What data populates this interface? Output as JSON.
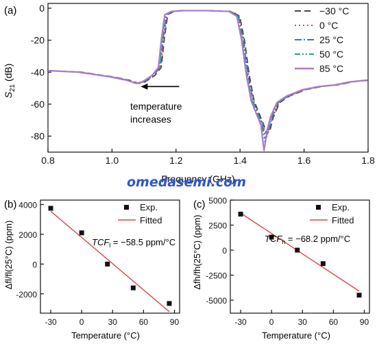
{
  "chart_data": [
    {
      "panel": "(a)",
      "type": "line",
      "xlabel": "Frequency (GHz)",
      "ylabel_main": "S",
      "ylabel_sub": "21",
      "ylabel_unit": " (dB)",
      "xlim": [
        0.8,
        1.8
      ],
      "ylim": [
        -90,
        3
      ],
      "xticks": [
        0.8,
        1.0,
        1.2,
        1.4,
        1.6,
        1.8
      ],
      "xtick_labels": [
        "0.8",
        "1.0",
        "1.2",
        "1.4",
        "1.6",
        "1.8"
      ],
      "yticks": [
        0,
        -20,
        -40,
        -60,
        -80
      ],
      "ytick_labels": [
        "0",
        "-20",
        "-40",
        "-60",
        "-80"
      ],
      "legend_position": "top-right",
      "annotation_line1": "temperature",
      "annotation_line2": "increases",
      "annotation_arrow": {
        "from": [
          1.21,
          -49
        ],
        "to": [
          1.09,
          -49
        ]
      },
      "series": [
        {
          "name": "−30 °C",
          "color": "#444444",
          "dash": "9,5",
          "shift": 0.004,
          "x": [
            0.8,
            0.9,
            1.0,
            1.05,
            1.08,
            1.1,
            1.13,
            1.15,
            1.16,
            1.17,
            1.19,
            1.22,
            1.3,
            1.37,
            1.395,
            1.41,
            1.425,
            1.44,
            1.46,
            1.47,
            1.48,
            1.49,
            1.5,
            1.52,
            1.55,
            1.6,
            1.65,
            1.7,
            1.75,
            1.8
          ],
          "y": [
            -39,
            -40,
            -43,
            -45,
            -47,
            -46,
            -42,
            -37,
            -18,
            -4,
            -2,
            -1.5,
            -1.5,
            -2,
            -5,
            -20,
            -42,
            -58,
            -68,
            -73,
            -79,
            -76,
            -68,
            -59,
            -55,
            -51,
            -49,
            -48,
            -46,
            -45
          ]
        },
        {
          "name": "0 °C",
          "color": "#e0403a",
          "dash": "2,4",
          "shift": 0.002,
          "x": [
            0.8,
            0.9,
            1.0,
            1.05,
            1.08,
            1.1,
            1.13,
            1.15,
            1.16,
            1.17,
            1.19,
            1.22,
            1.3,
            1.37,
            1.395,
            1.41,
            1.425,
            1.44,
            1.46,
            1.47,
            1.48,
            1.49,
            1.5,
            1.52,
            1.55,
            1.6,
            1.65,
            1.7,
            1.75,
            1.8
          ],
          "y": [
            -39,
            -40,
            -43,
            -45,
            -47,
            -46,
            -42,
            -37,
            -18,
            -4,
            -2,
            -1.5,
            -1.5,
            -2,
            -5,
            -20,
            -42,
            -58,
            -68,
            -73,
            -80,
            -76,
            -68,
            -59,
            -55,
            -51,
            -49,
            -48,
            -46,
            -45
          ]
        },
        {
          "name": "25 °C",
          "color": "#3a72c0",
          "dash": "10,3,2,3",
          "shift": 0.0,
          "x": [
            0.8,
            0.9,
            1.0,
            1.05,
            1.08,
            1.1,
            1.13,
            1.15,
            1.16,
            1.17,
            1.19,
            1.22,
            1.3,
            1.37,
            1.395,
            1.41,
            1.425,
            1.44,
            1.46,
            1.47,
            1.48,
            1.49,
            1.5,
            1.52,
            1.55,
            1.6,
            1.65,
            1.7,
            1.75,
            1.8
          ],
          "y": [
            -39,
            -40,
            -43,
            -45,
            -47,
            -46,
            -42,
            -37,
            -18,
            -4,
            -2,
            -1.5,
            -1.5,
            -2,
            -5,
            -20,
            -42,
            -58,
            -68,
            -73,
            -82,
            -76,
            -68,
            -59,
            -55,
            -51,
            -49,
            -48,
            -46,
            -45
          ]
        },
        {
          "name": "50 °C",
          "color": "#2a9a8a",
          "dash": "8,3,2,3,2,3",
          "shift": -0.002,
          "x": [
            0.8,
            0.9,
            1.0,
            1.05,
            1.08,
            1.1,
            1.13,
            1.15,
            1.16,
            1.17,
            1.19,
            1.22,
            1.3,
            1.37,
            1.395,
            1.41,
            1.425,
            1.44,
            1.46,
            1.47,
            1.48,
            1.49,
            1.5,
            1.52,
            1.55,
            1.6,
            1.65,
            1.7,
            1.75,
            1.8
          ],
          "y": [
            -39,
            -40,
            -43,
            -45,
            -47,
            -46,
            -42,
            -37,
            -18,
            -4,
            -2,
            -1.5,
            -1.5,
            -2,
            -5,
            -20,
            -42,
            -58,
            -68,
            -73,
            -84,
            -76,
            -68,
            -59,
            -55,
            -51,
            -49,
            -48,
            -46,
            -45
          ]
        },
        {
          "name": "85 °C",
          "color": "#a97cc8",
          "dash": "",
          "shift": -0.005,
          "x": [
            0.8,
            0.9,
            1.0,
            1.05,
            1.08,
            1.1,
            1.13,
            1.15,
            1.16,
            1.17,
            1.19,
            1.22,
            1.3,
            1.37,
            1.395,
            1.41,
            1.425,
            1.44,
            1.46,
            1.47,
            1.48,
            1.49,
            1.5,
            1.52,
            1.55,
            1.6,
            1.65,
            1.7,
            1.75,
            1.8
          ],
          "y": [
            -39,
            -40,
            -43,
            -45,
            -47,
            -46,
            -42,
            -37,
            -18,
            -4,
            -2,
            -1.5,
            -1.5,
            -2,
            -5,
            -20,
            -42,
            -58,
            -68,
            -73,
            -89,
            -76,
            -68,
            -59,
            -55,
            -51,
            -49,
            -48,
            -46,
            -45
          ]
        }
      ]
    },
    {
      "panel": "(b)",
      "type": "scatter",
      "xlabel": "Temperature (°C)",
      "ylabel": "Δfl/fl(25°C) (ppm)",
      "xlim": [
        -40,
        95
      ],
      "ylim": [
        -3300,
        4300
      ],
      "xticks": [
        -30,
        0,
        30,
        60,
        90
      ],
      "xtick_labels": [
        "-30",
        "0",
        "30",
        "60",
        "90"
      ],
      "yticks": [
        -2000,
        0,
        2000,
        4000
      ],
      "ytick_labels": [
        "-2000",
        "0",
        "2000",
        "4000"
      ],
      "legend": [
        "Exp.",
        "Fitted"
      ],
      "annotation_prefix": "TCF",
      "annotation_sub": "l",
      "annotation_value": " = −58.5 ppm/°C",
      "exp_x": [
        -30,
        0,
        25,
        50,
        85
      ],
      "exp_y": [
        3750,
        2100,
        0,
        -1600,
        -2650
      ],
      "fit_line": {
        "x": [
          -30,
          85
        ],
        "y": [
          3550,
          -3200
        ]
      }
    },
    {
      "panel": "(c)",
      "type": "scatter",
      "xlabel": "Temperature (°C)",
      "ylabel": "Δfh/fh(25°C) (ppm)",
      "xlim": [
        -40,
        95
      ],
      "ylim": [
        -6300,
        5000
      ],
      "xticks": [
        -30,
        0,
        30,
        60,
        90
      ],
      "xtick_labels": [
        "-30",
        "0",
        "30",
        "60",
        "90"
      ],
      "yticks": [
        5000,
        2500,
        0,
        -2500,
        -5000
      ],
      "ytick_labels": [
        "5000",
        "2500",
        "0",
        "-2500",
        "-5000"
      ],
      "legend": [
        "Exp.",
        "Fitted"
      ],
      "annotation_prefix": "TCF",
      "annotation_sub": "h",
      "annotation_value": " = −68.2 ppm/°C",
      "exp_x": [
        -30,
        0,
        25,
        50,
        85
      ],
      "exp_y": [
        3600,
        1300,
        0,
        -1350,
        -4500
      ],
      "fit_line": {
        "x": [
          -30,
          85
        ],
        "y": [
          3700,
          -4100
        ]
      }
    }
  ],
  "watermark": "omedasemi.com",
  "colors": {
    "fit_line": "#e04545",
    "marker": "#111111",
    "axis": "#111111",
    "watermark": "#2f56c9"
  }
}
